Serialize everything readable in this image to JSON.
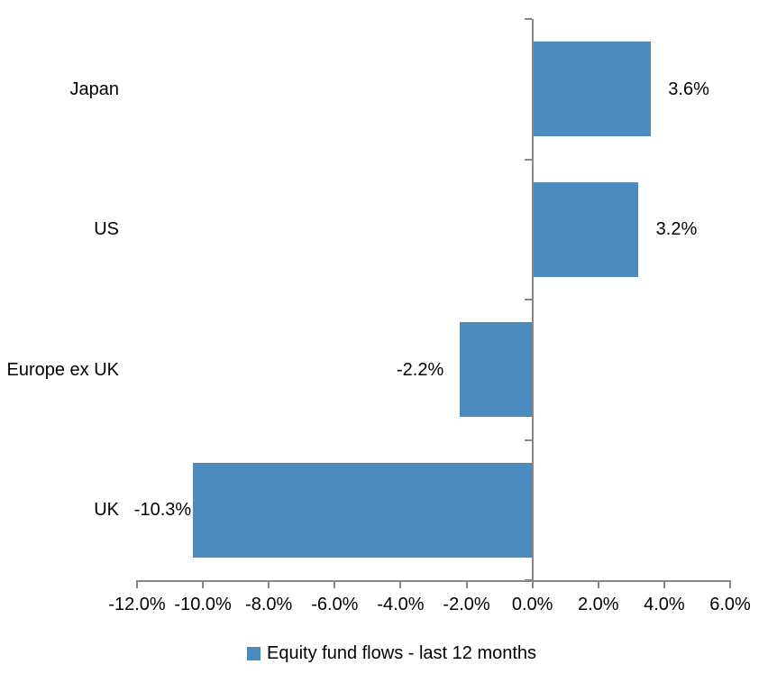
{
  "chart_data": {
    "type": "bar",
    "orientation": "horizontal",
    "title": "",
    "categories": [
      "Japan",
      "US",
      "Europe ex UK",
      "UK"
    ],
    "series": [
      {
        "name": "Equity fund flows - last 12 months",
        "values": [
          3.6,
          3.2,
          -2.2,
          -10.3
        ],
        "labels": [
          "3.6%",
          "3.2%",
          "-2.2%",
          "-10.3%"
        ],
        "color": "#4C8BBE"
      }
    ],
    "xlim": [
      -12,
      6
    ],
    "x_tick_values": [
      -12,
      -10,
      -8,
      -6,
      -4,
      -2,
      0,
      2,
      4,
      6
    ],
    "x_tick_labels": [
      "-12.0%",
      "-10.0%",
      "-8.0%",
      "-6.0%",
      "-4.0%",
      "-2.0%",
      "0.0%",
      "2.0%",
      "4.0%",
      "6.0%"
    ],
    "grid": false,
    "legend_position": "bottom",
    "axis_color": "#878787",
    "text_color": "#000000",
    "background_color": "#FFFFFF"
  },
  "legend": {
    "label": "Equity fund flows - last 12 months",
    "swatch_color": "#4C8BBE"
  }
}
